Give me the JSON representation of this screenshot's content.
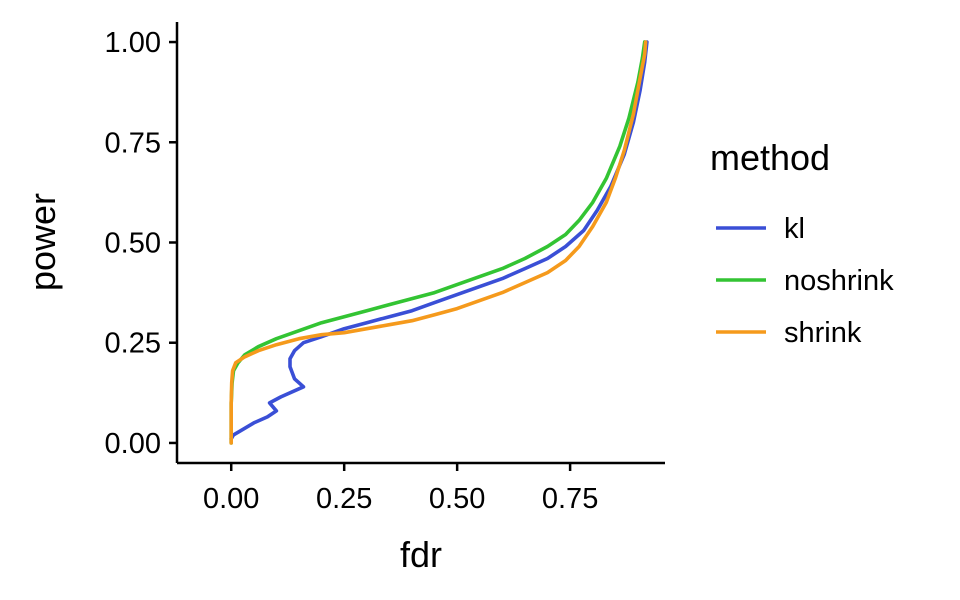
{
  "chart_data": {
    "type": "line",
    "xlabel": "fdr",
    "ylabel": "power",
    "xlim": [
      -0.12,
      0.96
    ],
    "ylim": [
      -0.05,
      1.05
    ],
    "x_ticks": [
      0,
      0.25,
      0.5,
      0.75
    ],
    "x_tick_labels": [
      "0.00",
      "0.25",
      "0.50",
      "0.75"
    ],
    "y_ticks": [
      0,
      0.25,
      0.5,
      0.75,
      1.0
    ],
    "y_tick_labels": [
      "0.00",
      "0.25",
      "0.50",
      "0.75",
      "1.00"
    ],
    "grid": false,
    "legend": {
      "title": "method",
      "position": "right"
    },
    "series": [
      {
        "name": "kl",
        "color": "#3A4FD6",
        "points": [
          [
            0.0,
            0.01
          ],
          [
            0.005,
            0.02
          ],
          [
            0.02,
            0.03
          ],
          [
            0.05,
            0.05
          ],
          [
            0.08,
            0.065
          ],
          [
            0.1,
            0.08
          ],
          [
            0.085,
            0.1
          ],
          [
            0.11,
            0.115
          ],
          [
            0.16,
            0.14
          ],
          [
            0.14,
            0.16
          ],
          [
            0.13,
            0.19
          ],
          [
            0.13,
            0.21
          ],
          [
            0.14,
            0.23
          ],
          [
            0.16,
            0.25
          ],
          [
            0.2,
            0.265
          ],
          [
            0.25,
            0.285
          ],
          [
            0.3,
            0.3
          ],
          [
            0.35,
            0.315
          ],
          [
            0.4,
            0.33
          ],
          [
            0.45,
            0.35
          ],
          [
            0.5,
            0.37
          ],
          [
            0.55,
            0.39
          ],
          [
            0.6,
            0.41
          ],
          [
            0.65,
            0.435
          ],
          [
            0.7,
            0.46
          ],
          [
            0.74,
            0.49
          ],
          [
            0.78,
            0.53
          ],
          [
            0.81,
            0.58
          ],
          [
            0.84,
            0.64
          ],
          [
            0.87,
            0.72
          ],
          [
            0.89,
            0.8
          ],
          [
            0.905,
            0.88
          ],
          [
            0.915,
            0.95
          ],
          [
            0.92,
            1.0
          ]
        ]
      },
      {
        "name": "noshrink",
        "color": "#33C433",
        "points": [
          [
            0.0,
            0.0
          ],
          [
            0.0,
            0.05
          ],
          [
            0.0,
            0.1
          ],
          [
            0.002,
            0.15
          ],
          [
            0.005,
            0.18
          ],
          [
            0.015,
            0.2
          ],
          [
            0.03,
            0.22
          ],
          [
            0.06,
            0.24
          ],
          [
            0.1,
            0.26
          ],
          [
            0.15,
            0.28
          ],
          [
            0.2,
            0.3
          ],
          [
            0.25,
            0.315
          ],
          [
            0.3,
            0.33
          ],
          [
            0.35,
            0.345
          ],
          [
            0.4,
            0.36
          ],
          [
            0.45,
            0.375
          ],
          [
            0.5,
            0.395
          ],
          [
            0.55,
            0.415
          ],
          [
            0.6,
            0.435
          ],
          [
            0.65,
            0.46
          ],
          [
            0.7,
            0.49
          ],
          [
            0.74,
            0.52
          ],
          [
            0.77,
            0.555
          ],
          [
            0.8,
            0.6
          ],
          [
            0.83,
            0.66
          ],
          [
            0.86,
            0.74
          ],
          [
            0.88,
            0.81
          ],
          [
            0.9,
            0.9
          ],
          [
            0.91,
            0.96
          ],
          [
            0.915,
            1.0
          ]
        ]
      },
      {
        "name": "shrink",
        "color": "#F59A1C",
        "points": [
          [
            0.0,
            0.0
          ],
          [
            0.0,
            0.05
          ],
          [
            0.0,
            0.1
          ],
          [
            0.001,
            0.15
          ],
          [
            0.003,
            0.18
          ],
          [
            0.01,
            0.2
          ],
          [
            0.03,
            0.215
          ],
          [
            0.06,
            0.23
          ],
          [
            0.1,
            0.245
          ],
          [
            0.15,
            0.26
          ],
          [
            0.2,
            0.27
          ],
          [
            0.25,
            0.275
          ],
          [
            0.3,
            0.285
          ],
          [
            0.35,
            0.295
          ],
          [
            0.4,
            0.305
          ],
          [
            0.45,
            0.32
          ],
          [
            0.5,
            0.335
          ],
          [
            0.55,
            0.355
          ],
          [
            0.6,
            0.375
          ],
          [
            0.65,
            0.4
          ],
          [
            0.7,
            0.425
          ],
          [
            0.74,
            0.455
          ],
          [
            0.77,
            0.49
          ],
          [
            0.8,
            0.54
          ],
          [
            0.83,
            0.6
          ],
          [
            0.85,
            0.66
          ],
          [
            0.87,
            0.73
          ],
          [
            0.89,
            0.82
          ],
          [
            0.905,
            0.91
          ],
          [
            0.915,
            0.97
          ],
          [
            0.917,
            1.0
          ]
        ]
      }
    ]
  }
}
